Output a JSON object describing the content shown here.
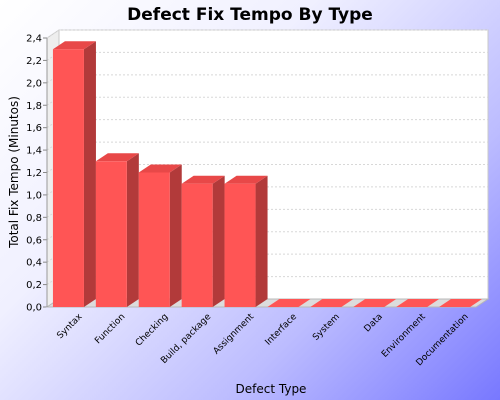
{
  "chart_data": {
    "type": "bar",
    "title": "Defect Fix Tempo By Type",
    "xlabel": "Defect Type",
    "ylabel": "Total Fix Tempo (Minutos)",
    "categories": [
      "Syntax",
      "Function",
      "Checking",
      "Build, package",
      "Assignment",
      "Interface",
      "System",
      "Data",
      "Environment",
      "Documentation"
    ],
    "values": [
      2.3,
      1.3,
      1.2,
      1.1,
      1.1,
      0,
      0,
      0,
      0,
      0
    ],
    "ylim": [
      0,
      2.4
    ],
    "yticks": [
      "0,0",
      "0,2",
      "0,4",
      "0,6",
      "0,8",
      "1,0",
      "1,2",
      "1,4",
      "1,6",
      "1,8",
      "2,0",
      "2,2",
      "2,4"
    ],
    "grid": true,
    "legend": "none",
    "colors": {
      "bar_front": "#ff5555",
      "bar_top": "#e84848",
      "bar_side": "#b23a3a",
      "grid": "#d8d8d8",
      "plot_bg": "#ffffff"
    }
  }
}
